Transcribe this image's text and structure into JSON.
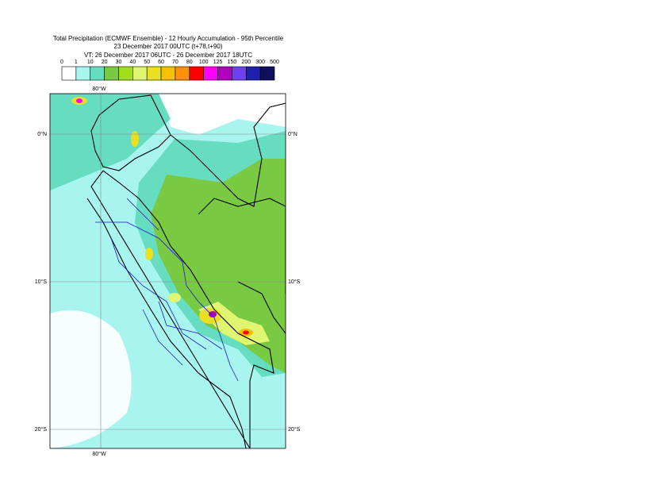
{
  "header": {
    "title_lines": [
      "Total Precipitation (ECMWF Ensemble) - 12 Hourly Accumulation - 95th Percentile",
      "23 December 2017 00UTC (t+78,t+90)",
      "VT: 26 December 2017 06UTC - 26 December 2017 18UTC"
    ]
  },
  "legend": {
    "labels": [
      "0",
      "1",
      "10",
      "20",
      "30",
      "40",
      "50",
      "60",
      "70",
      "80",
      "100",
      "125",
      "150",
      "200",
      "300",
      "500"
    ],
    "colors": [
      "#ffffff",
      "#a8f5f0",
      "#66dcc0",
      "#7ac943",
      "#a2de1a",
      "#e0f570",
      "#e8e020",
      "#f5c000",
      "#ff9000",
      "#ff0000",
      "#ff00ff",
      "#b000c0",
      "#7040f0",
      "#2020b0",
      "#10105a"
    ]
  },
  "axes": {
    "lon_labels": [
      "80°W"
    ],
    "lat_labels": [
      "0°N",
      "10°S",
      "20°S"
    ]
  }
}
